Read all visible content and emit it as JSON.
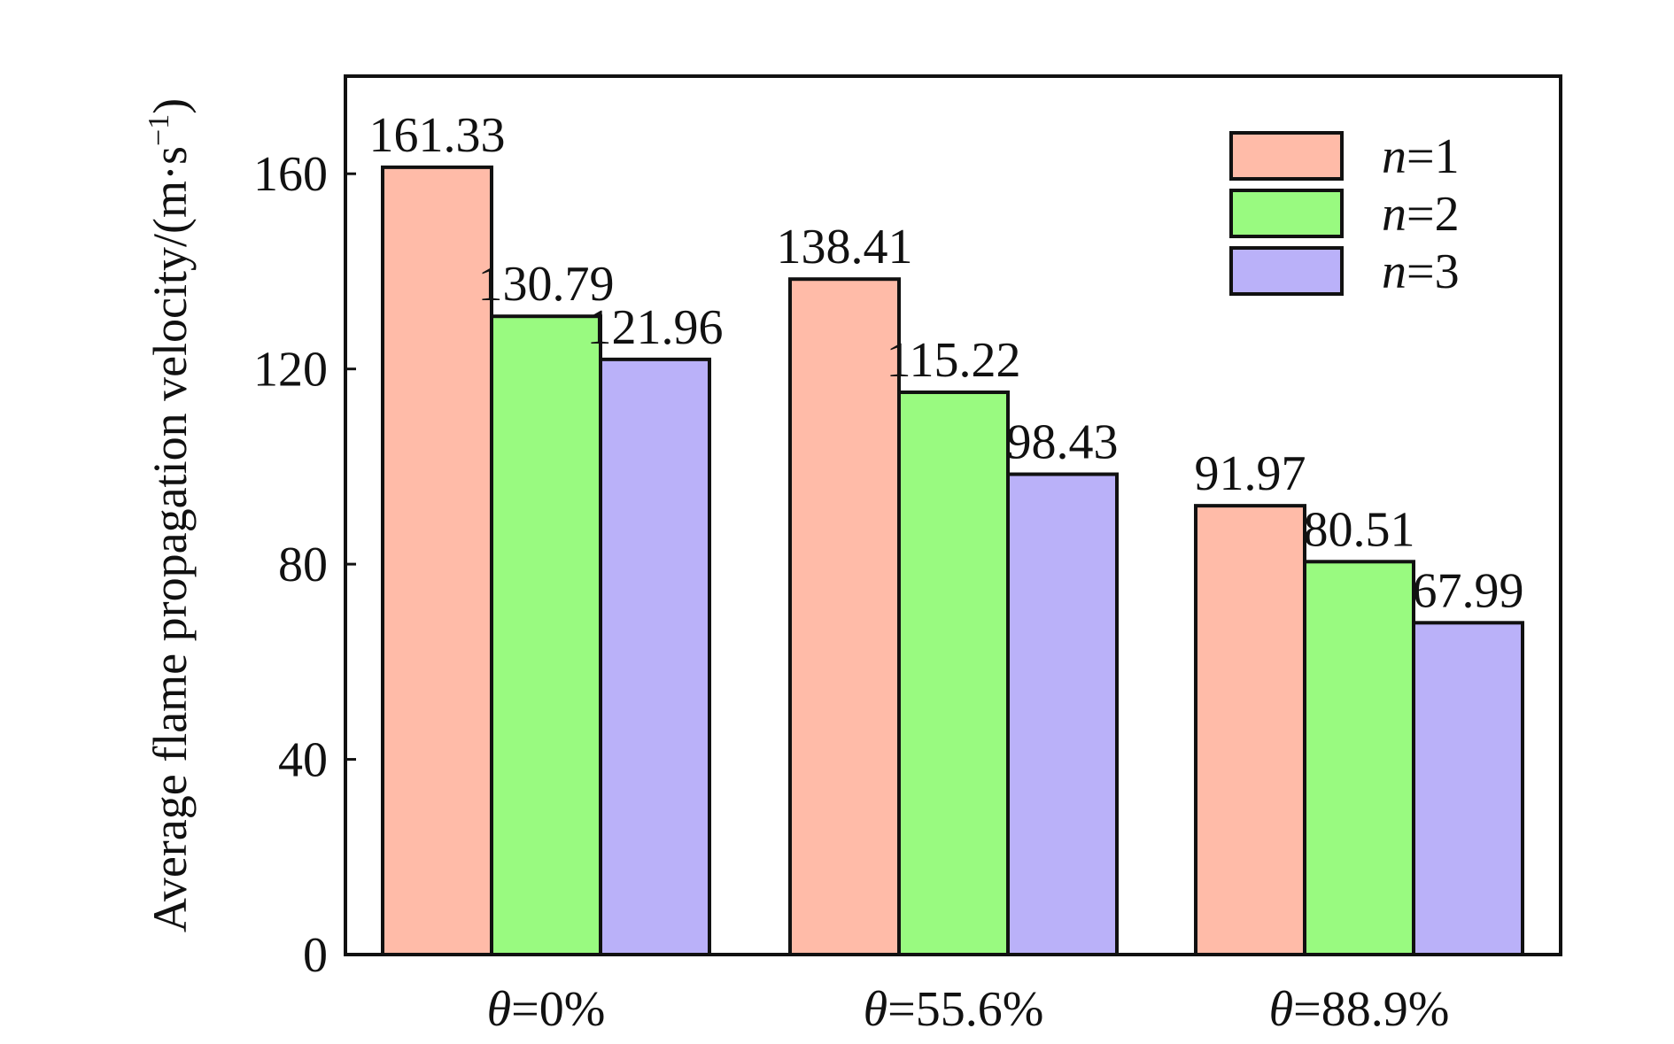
{
  "chart_data": {
    "type": "bar",
    "title": "",
    "xlabel": "",
    "ylabel": "Average flame propagation velocity/(m·s",
    "ylabel_sup": "−1",
    "ylabel_close": ")",
    "ylim": [
      0,
      180
    ],
    "yticks": [
      0,
      40,
      80,
      120,
      160
    ],
    "grid": false,
    "legend_position": "top-right",
    "categories": [
      {
        "symbol": "θ",
        "text": "=0%"
      },
      {
        "symbol": "θ",
        "text": "=55.6%"
      },
      {
        "symbol": "θ",
        "text": "=88.9%"
      }
    ],
    "series": [
      {
        "name": "n=1",
        "legend_symbol": "n",
        "legend_text": "=1",
        "color": "#FFBBA8",
        "values": [
          161.33,
          138.41,
          91.97
        ]
      },
      {
        "name": "n=2",
        "legend_symbol": "n",
        "legend_text": "=2",
        "color": "#99FA80",
        "values": [
          130.79,
          115.22,
          80.51
        ]
      },
      {
        "name": "n=3",
        "legend_symbol": "n",
        "legend_text": "=3",
        "color": "#BAB1F9",
        "values": [
          121.96,
          98.43,
          67.99
        ]
      }
    ],
    "data_labels": [
      [
        "161.33",
        "138.41",
        "91.97"
      ],
      [
        "130.79",
        "115.22",
        "80.51"
      ],
      [
        "121.96",
        "98.43",
        "67.99"
      ]
    ]
  }
}
